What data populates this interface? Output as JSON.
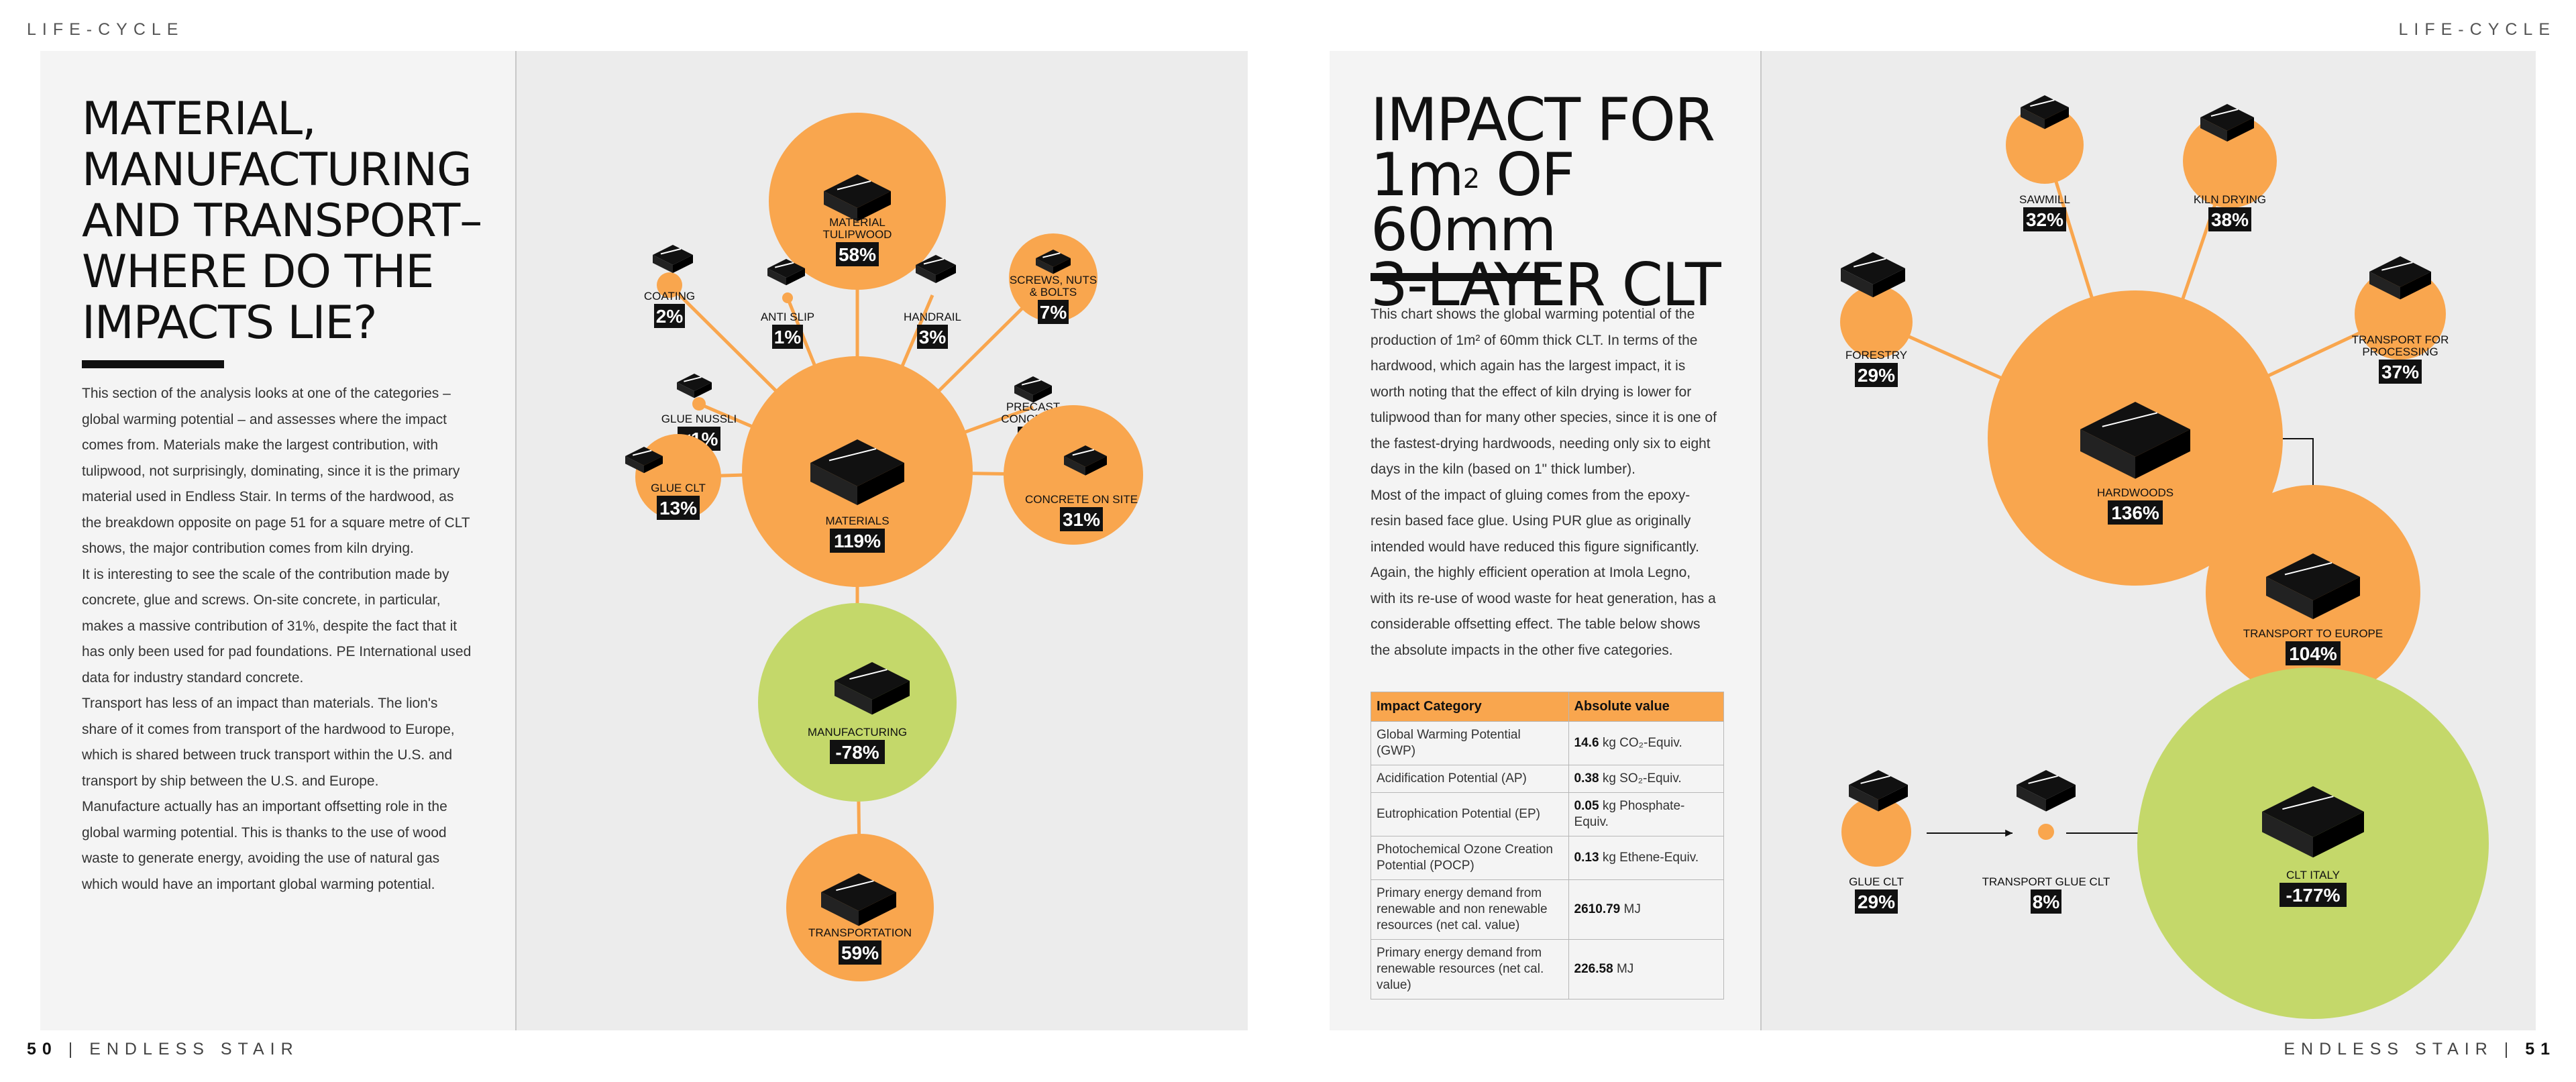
{
  "running_header_left": "LIFE-CYCLE",
  "running_header_right": "LIFE-CYCLE",
  "footer_left": {
    "page": "50",
    "title": "ENDLESS STAIR"
  },
  "footer_right": {
    "page": "51",
    "title": "ENDLESS STAIR"
  },
  "left_page": {
    "title_lines": [
      "MATERIAL,",
      "MANUFACTURING",
      "AND TRANSPORT–",
      "WHERE DO THE",
      "IMPACTS LIE?"
    ],
    "body": [
      "This section of the analysis looks at one of the categories – global warming potential – and assesses where the impact comes from. Materials make the largest contribution, with tulipwood, not surprisingly, dominating, since it is the primary material used in Endless Stair. In terms of the hardwood, as the breakdown opposite on page 51 for a square metre of CLT shows, the major contribution comes from kiln drying.",
      "It is interesting to see the scale of the contribution made by concrete, glue and screws. On-site concrete, in particular, makes a massive contribution of 31%, despite the fact that it has only been used for pad foundations. PE International used data for industry standard concrete.",
      "Transport has less of an impact than materials. The lion's share of it comes from transport of the hardwood to Europe, which is shared between truck transport within the U.S. and transport by ship between the U.S. and Europe.",
      "Manufacture actually has an important offsetting role in the global warming potential. This is thanks to the use of wood waste to generate energy, avoiding the use of natural gas which would have an important global warming potential."
    ]
  },
  "left_chart": {
    "nodes": [
      {
        "label": [
          "MATERIAL",
          "TULIPWOOD"
        ],
        "value": "58%",
        "color": "#f9a64e",
        "icon": "timber-stack-icon"
      },
      {
        "label": [
          "COATING"
        ],
        "value": "2%",
        "color": "#f9a64e",
        "icon": "paint-can-icon"
      },
      {
        "label": [
          "ANTI SLIP"
        ],
        "value": "1%",
        "color": "#f9a64e",
        "icon": "anti-slip-icon"
      },
      {
        "label": [
          "HANDRAIL"
        ],
        "value": "3%",
        "color": "#f9a64e",
        "icon": "handrail-icon"
      },
      {
        "label": [
          "SCREWS, NUTS",
          "& BOLTS"
        ],
        "value": "7%",
        "color": "#f9a64e",
        "icon": "screws-icon"
      },
      {
        "label": [
          "GLUE NUSSLI"
        ],
        "value": "<1%",
        "color": "#f9a64e",
        "icon": "glue-bottle-icon"
      },
      {
        "label": [
          "GLUE CLT"
        ],
        "value": "13%",
        "color": "#f9a64e",
        "icon": "glue-bottle-icon"
      },
      {
        "label": [
          "PRECAST",
          "CONCRETE"
        ],
        "value": "3%",
        "color": "#f9a64e",
        "icon": "precast-concrete-icon"
      },
      {
        "label": [
          "CONCRETE ON SITE"
        ],
        "value": "31%",
        "color": "#f9a64e",
        "icon": "concrete-pour-icon"
      },
      {
        "label": [
          "MATERIALS"
        ],
        "value": "119%",
        "color": "#f9a64e",
        "icon": "materials-icon"
      },
      {
        "label": [
          "MANUFACTURING"
        ],
        "value": "-78%",
        "color": "#c4d86a",
        "icon": "factory-icon"
      },
      {
        "label": [
          "TRANSPORTATION"
        ],
        "value": "59%",
        "color": "#f9a64e",
        "icon": "truck-icon"
      }
    ]
  },
  "right_page": {
    "title_lines": [
      "IMPACT FOR",
      "1m",
      "2",
      " OF 60mm",
      "3-LAYER CLT"
    ],
    "body": [
      "This chart shows the global warming potential of the production of 1m² of 60mm thick CLT. In terms of the hardwood, which again has the largest impact, it is worth noting that the effect of kiln drying is lower for tulipwood than for many other species, since it is one of the fastest-drying hardwoods, needing only six to eight days in the kiln (based on 1\" thick lumber).",
      "Most of the impact of gluing comes from the epoxy-resin based face glue. Using PUR glue as originally intended would have reduced this figure significantly. Again, the highly efficient operation at Imola Legno, with its re-use of wood waste for heat generation, has a considerable offsetting effect. The table below shows the absolute impacts in the other five categories."
    ],
    "table": {
      "headers": [
        "Impact Category",
        "Absolute value"
      ],
      "rows": [
        {
          "category": "Global Warming Potential (GWP)",
          "value": "14.6",
          "unit": "kg CO₂-Equiv."
        },
        {
          "category": "Acidification Potential (AP)",
          "value": "0.38",
          "unit": "kg SO₂-Equiv."
        },
        {
          "category": "Eutrophication Potential (EP)",
          "value": "0.05",
          "unit": "kg Phosphate-Equiv."
        },
        {
          "category": "Photochemical Ozone Creation Potential (POCP)",
          "value": "0.13",
          "unit": "kg Ethene-Equiv."
        },
        {
          "category": "Primary energy demand from renewable and non renewable resources (net cal. value)",
          "value": "2610.79",
          "unit": "MJ"
        },
        {
          "category": "Primary energy demand from renewable resources (net cal. value)",
          "value": "226.58",
          "unit": "MJ"
        }
      ]
    }
  },
  "right_chart": {
    "nodes": [
      {
        "label": [
          "SAWMILL"
        ],
        "value": "32%",
        "color": "#f9a64e",
        "icon": "saw-blade-icon"
      },
      {
        "label": [
          "KILN DRYING"
        ],
        "value": "38%",
        "color": "#f9a64e",
        "icon": "kiln-icon"
      },
      {
        "label": [
          "FORESTRY"
        ],
        "value": "29%",
        "color": "#f9a64e",
        "icon": "trees-icon"
      },
      {
        "label": [
          "TRANSPORT FOR",
          "PROCESSING"
        ],
        "value": "37%",
        "color": "#f9a64e",
        "icon": "truck-icon"
      },
      {
        "label": [
          "HARDWOODS"
        ],
        "value": "136%",
        "color": "#f9a64e",
        "icon": "lumber-icon"
      },
      {
        "label": [
          "TRANSPORT TO EUROPE"
        ],
        "value": "104%",
        "color": "#f9a64e",
        "icon": "ship-icon"
      },
      {
        "label": [
          "GLUE CLT"
        ],
        "value": "29%",
        "color": "#f9a64e",
        "icon": "glue-bottle-icon"
      },
      {
        "label": [
          "TRANSPORT GLUE CLT"
        ],
        "value": "8%",
        "color": "#f9a64e",
        "icon": "truck-icon"
      },
      {
        "label": [
          "CLT ITALY"
        ],
        "value": "-177%",
        "color": "#c4d86a",
        "icon": "factory-icon"
      }
    ]
  },
  "colors": {
    "orange": "#f9a64e",
    "green": "#c4d86a",
    "black": "#111111"
  }
}
